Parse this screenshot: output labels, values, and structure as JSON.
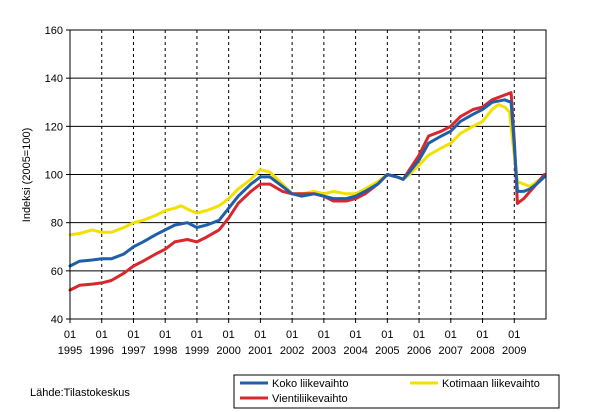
{
  "source": "Lähde:Tilastokeskus",
  "colors": {
    "koko": "#1f5fa8",
    "kotimaan": "#f3e000",
    "vienti": "#d9272e"
  },
  "chart_data": {
    "type": "line",
    "title": "",
    "ylabel": "Indeksi (2005=100)",
    "xlabel": "",
    "ylim": [
      40,
      160
    ],
    "yticks": [
      40,
      60,
      80,
      100,
      120,
      140,
      160
    ],
    "xlim": [
      1995.0,
      2010.0
    ],
    "xticks": [
      {
        "month": "01",
        "year": "1995",
        "x": 1995.0
      },
      {
        "month": "01",
        "year": "1996",
        "x": 1996.0
      },
      {
        "month": "01",
        "year": "1997",
        "x": 1997.0
      },
      {
        "month": "01",
        "year": "1998",
        "x": 1998.0
      },
      {
        "month": "01",
        "year": "1999",
        "x": 1999.0
      },
      {
        "month": "01",
        "year": "2000",
        "x": 2000.0
      },
      {
        "month": "01",
        "year": "2001",
        "x": 2001.0
      },
      {
        "month": "01",
        "year": "2002",
        "x": 2002.0
      },
      {
        "month": "01",
        "year": "2003",
        "x": 2003.0
      },
      {
        "month": "01",
        "year": "2004",
        "x": 2004.0
      },
      {
        "month": "01",
        "year": "2005",
        "x": 2005.0
      },
      {
        "month": "01",
        "year": "2006",
        "x": 2006.0
      },
      {
        "month": "01",
        "year": "2007",
        "x": 2007.0
      },
      {
        "month": "01",
        "year": "2008",
        "x": 2008.0
      },
      {
        "month": "01",
        "year": "2009",
        "x": 2009.0
      }
    ],
    "grid": "horizontal solid, vertical dashed",
    "legend_position": "bottom-right",
    "series": [
      {
        "name": "Koko liikevaihto",
        "color": "#1f5fa8",
        "points": [
          [
            1995.0,
            62
          ],
          [
            1995.3,
            64
          ],
          [
            1995.7,
            64.5
          ],
          [
            1996.0,
            65
          ],
          [
            1996.3,
            65
          ],
          [
            1996.7,
            67
          ],
          [
            1997.0,
            70
          ],
          [
            1997.3,
            72
          ],
          [
            1997.7,
            75
          ],
          [
            1998.0,
            77
          ],
          [
            1998.3,
            79
          ],
          [
            1998.7,
            80
          ],
          [
            1999.0,
            78
          ],
          [
            1999.3,
            79
          ],
          [
            1999.7,
            81
          ],
          [
            2000.0,
            86
          ],
          [
            2000.3,
            91
          ],
          [
            2000.7,
            96
          ],
          [
            2001.0,
            99
          ],
          [
            2001.3,
            99
          ],
          [
            2001.7,
            95
          ],
          [
            2002.0,
            92
          ],
          [
            2002.3,
            91
          ],
          [
            2002.7,
            92
          ],
          [
            2003.0,
            91
          ],
          [
            2003.3,
            90
          ],
          [
            2003.7,
            90
          ],
          [
            2004.0,
            91
          ],
          [
            2004.3,
            93
          ],
          [
            2004.7,
            96
          ],
          [
            2005.0,
            100
          ],
          [
            2005.3,
            99
          ],
          [
            2005.5,
            98
          ],
          [
            2005.7,
            101
          ],
          [
            2006.0,
            106
          ],
          [
            2006.3,
            113
          ],
          [
            2006.7,
            116
          ],
          [
            2007.0,
            118
          ],
          [
            2007.3,
            122
          ],
          [
            2007.7,
            125
          ],
          [
            2008.0,
            127
          ],
          [
            2008.3,
            130
          ],
          [
            2008.7,
            131
          ],
          [
            2008.9,
            130
          ],
          [
            2009.0,
            112
          ],
          [
            2009.1,
            93
          ],
          [
            2009.3,
            93
          ],
          [
            2009.5,
            94
          ],
          [
            2009.7,
            96
          ],
          [
            2009.95,
            99
          ]
        ]
      },
      {
        "name": "Kotimaan liikevaihto",
        "color": "#f3e000",
        "points": [
          [
            1995.0,
            75
          ],
          [
            1995.3,
            75.5
          ],
          [
            1995.7,
            77
          ],
          [
            1996.0,
            76
          ],
          [
            1996.3,
            76
          ],
          [
            1996.7,
            78
          ],
          [
            1997.0,
            80
          ],
          [
            1997.3,
            81
          ],
          [
            1997.7,
            83
          ],
          [
            1998.0,
            85
          ],
          [
            1998.3,
            86
          ],
          [
            1998.5,
            87
          ],
          [
            1998.8,
            85
          ],
          [
            1999.0,
            84
          ],
          [
            1999.3,
            85
          ],
          [
            1999.7,
            87
          ],
          [
            2000.0,
            90
          ],
          [
            2000.3,
            94
          ],
          [
            2000.7,
            98
          ],
          [
            2001.0,
            102
          ],
          [
            2001.3,
            101
          ],
          [
            2001.7,
            96
          ],
          [
            2002.0,
            92
          ],
          [
            2002.3,
            92
          ],
          [
            2002.7,
            93
          ],
          [
            2003.0,
            92
          ],
          [
            2003.3,
            93
          ],
          [
            2003.7,
            92
          ],
          [
            2004.0,
            92
          ],
          [
            2004.3,
            94
          ],
          [
            2004.7,
            97
          ],
          [
            2005.0,
            100
          ],
          [
            2005.3,
            99
          ],
          [
            2005.5,
            98
          ],
          [
            2005.7,
            100
          ],
          [
            2006.0,
            104
          ],
          [
            2006.3,
            108
          ],
          [
            2006.7,
            111
          ],
          [
            2007.0,
            113
          ],
          [
            2007.3,
            117
          ],
          [
            2007.7,
            120
          ],
          [
            2008.0,
            122
          ],
          [
            2008.3,
            127
          ],
          [
            2008.5,
            129
          ],
          [
            2008.7,
            128
          ],
          [
            2008.85,
            126
          ],
          [
            2009.0,
            108
          ],
          [
            2009.1,
            97
          ],
          [
            2009.3,
            96
          ],
          [
            2009.5,
            95
          ],
          [
            2009.7,
            97
          ],
          [
            2009.95,
            99
          ]
        ]
      },
      {
        "name": "Vientiliikevaihto",
        "color": "#d9272e",
        "points": [
          [
            1995.0,
            52
          ],
          [
            1995.3,
            54
          ],
          [
            1995.7,
            54.5
          ],
          [
            1996.0,
            55
          ],
          [
            1996.3,
            56
          ],
          [
            1996.7,
            59
          ],
          [
            1997.0,
            62
          ],
          [
            1997.3,
            64
          ],
          [
            1997.7,
            67
          ],
          [
            1998.0,
            69
          ],
          [
            1998.3,
            72
          ],
          [
            1998.7,
            73
          ],
          [
            1999.0,
            72
          ],
          [
            1999.3,
            74
          ],
          [
            1999.7,
            77
          ],
          [
            2000.0,
            82
          ],
          [
            2000.3,
            88
          ],
          [
            2000.7,
            93
          ],
          [
            2001.0,
            96
          ],
          [
            2001.3,
            96
          ],
          [
            2001.7,
            93
          ],
          [
            2002.0,
            92
          ],
          [
            2002.3,
            92
          ],
          [
            2002.7,
            92
          ],
          [
            2003.0,
            91
          ],
          [
            2003.3,
            89
          ],
          [
            2003.7,
            89
          ],
          [
            2004.0,
            90
          ],
          [
            2004.3,
            92
          ],
          [
            2004.7,
            96
          ],
          [
            2005.0,
            100
          ],
          [
            2005.3,
            99
          ],
          [
            2005.5,
            98
          ],
          [
            2005.7,
            102
          ],
          [
            2006.0,
            108
          ],
          [
            2006.3,
            116
          ],
          [
            2006.7,
            118
          ],
          [
            2007.0,
            120
          ],
          [
            2007.3,
            124
          ],
          [
            2007.7,
            127
          ],
          [
            2008.0,
            128
          ],
          [
            2008.3,
            131
          ],
          [
            2008.7,
            133
          ],
          [
            2008.9,
            134
          ],
          [
            2009.0,
            114
          ],
          [
            2009.1,
            88
          ],
          [
            2009.3,
            90
          ],
          [
            2009.5,
            93
          ],
          [
            2009.7,
            96
          ],
          [
            2009.95,
            100
          ]
        ]
      }
    ]
  }
}
